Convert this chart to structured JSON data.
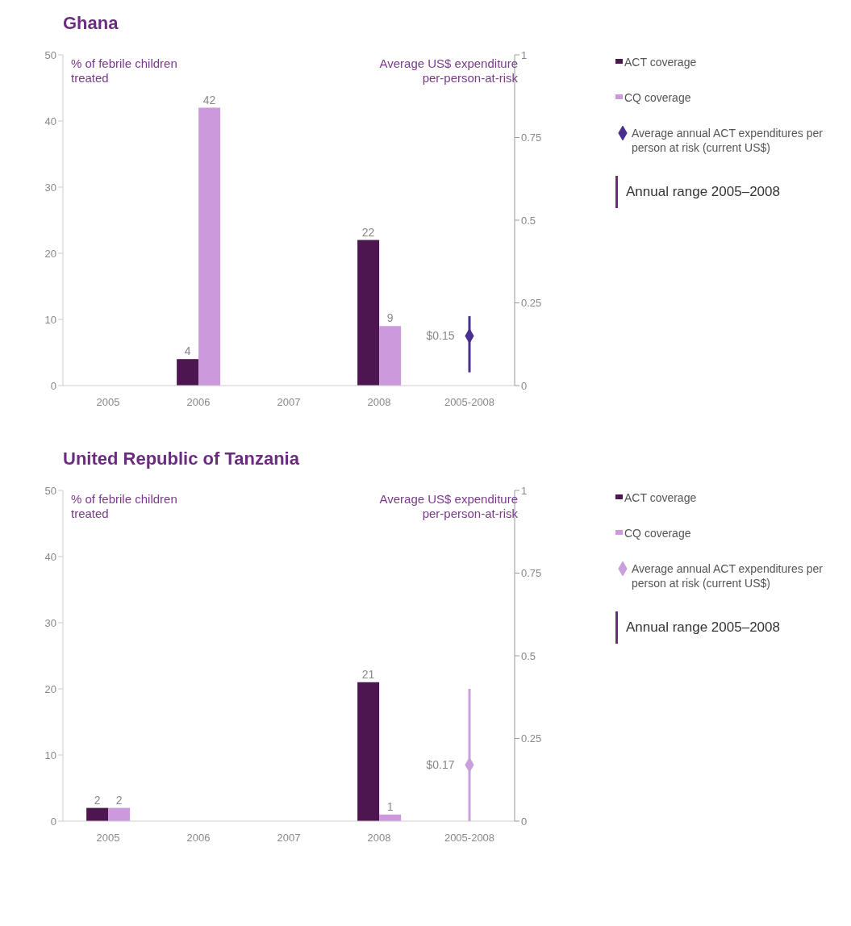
{
  "chart_data": [
    {
      "type": "bar",
      "title": "Ghana",
      "ylabel": "% of febrile children treated",
      "y2label": "Average US$ expenditure per-person-at-risk",
      "categories": [
        "2005",
        "2006",
        "2007",
        "2008",
        "2005-2008"
      ],
      "series": [
        {
          "name": "ACT coverage",
          "color": "#4d1650",
          "values": [
            null,
            4,
            null,
            22,
            null
          ]
        },
        {
          "name": "CQ coverage",
          "color": "#cc99dd",
          "values": [
            null,
            42,
            null,
            9,
            null
          ]
        },
        {
          "name": "Average annual ACT expenditures per person at risk (current US$)",
          "type": "scatter",
          "axis": "y2",
          "color": "#4b2f8f",
          "values": [
            null,
            null,
            null,
            null,
            0.15
          ],
          "errors": [
            null,
            null,
            null,
            null,
            [
              0.04,
              0.21
            ]
          ],
          "value_labels": [
            null,
            null,
            null,
            null,
            "$0.15"
          ]
        }
      ],
      "ylim": [
        0,
        50
      ],
      "yticks": [
        0,
        10,
        20,
        30,
        40,
        50
      ],
      "y2lim": [
        0,
        1
      ],
      "y2ticks": [
        0,
        0.25,
        0.5,
        0.75,
        1
      ],
      "data_labels": true,
      "marker": "diamond",
      "legend": "right",
      "grid": false,
      "annotations": [
        "Annual range 2005–2008"
      ]
    },
    {
      "type": "bar",
      "title": "United Republic of Tanzania",
      "ylabel": "% of febrile children treated",
      "y2label": "Average US$ expenditure per-person-at-risk",
      "categories": [
        "2005",
        "2006",
        "2007",
        "2008",
        "2005-2008"
      ],
      "series": [
        {
          "name": "ACT coverage",
          "color": "#4d1650",
          "values": [
            2,
            null,
            null,
            21,
            null
          ]
        },
        {
          "name": "CQ coverage",
          "color": "#cc99dd",
          "values": [
            2,
            null,
            null,
            1,
            null
          ]
        },
        {
          "name": "Average annual ACT expenditures per person at risk (current US$)",
          "type": "scatter",
          "axis": "y2",
          "color": "#c9a0dc",
          "values": [
            null,
            null,
            null,
            null,
            0.17
          ],
          "errors": [
            null,
            null,
            null,
            null,
            [
              0,
              0.4
            ]
          ],
          "value_labels": [
            null,
            null,
            null,
            null,
            "$0.17"
          ]
        }
      ],
      "ylim": [
        0,
        50
      ],
      "yticks": [
        0,
        10,
        20,
        30,
        40,
        50
      ],
      "y2lim": [
        0,
        1
      ],
      "y2ticks": [
        0,
        0.25,
        0.5,
        0.75,
        1
      ],
      "data_labels": true,
      "marker": "diamond",
      "legend": "right",
      "grid": false,
      "annotations": [
        "Annual range 2005–2008"
      ]
    }
  ]
}
